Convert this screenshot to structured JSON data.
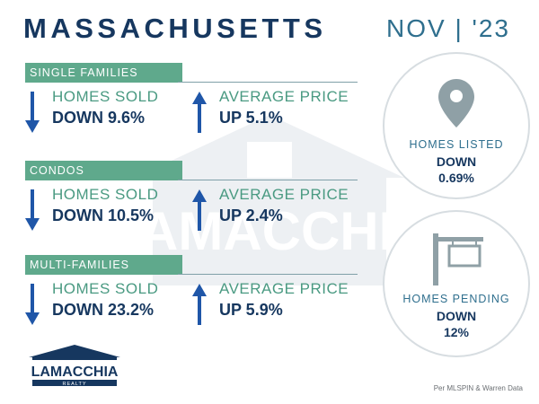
{
  "header": {
    "title": "MASSACHUSETTS",
    "date": "NOV | '23"
  },
  "sections": [
    {
      "name": "SINGLE FAMILIES",
      "homes_sold": {
        "label": "HOMES SOLD",
        "value": "DOWN 9.6%",
        "direction": "down"
      },
      "average_price": {
        "label": "AVERAGE PRICE",
        "value": "UP 5.1%",
        "direction": "up"
      }
    },
    {
      "name": "CONDOS",
      "homes_sold": {
        "label": "HOMES SOLD",
        "value": "DOWN 10.5%",
        "direction": "down"
      },
      "average_price": {
        "label": "AVERAGE PRICE",
        "value": "UP 2.4%",
        "direction": "up"
      }
    },
    {
      "name": "MULTI-FAMILIES",
      "homes_sold": {
        "label": "HOMES SOLD",
        "value": "DOWN 23.2%",
        "direction": "down"
      },
      "average_price": {
        "label": "AVERAGE PRICE",
        "value": "UP 5.9%",
        "direction": "up"
      }
    }
  ],
  "listed": {
    "label": "HOMES LISTED",
    "line1": "DOWN",
    "line2": "0.69%",
    "icon": "location-pin-icon"
  },
  "pending": {
    "label": "HOMES PENDING",
    "line1": "DOWN",
    "line2": "12%",
    "icon": "sign-post-icon"
  },
  "logo": {
    "brand": "LAMACCHIA",
    "sub": "REALTY"
  },
  "source": "Per MLSPIN & Warren Data",
  "colors": {
    "navy": "#16375f",
    "green": "#5fa98c",
    "teal": "#2f6f8e",
    "arrow_blue": "#1f56a8"
  }
}
